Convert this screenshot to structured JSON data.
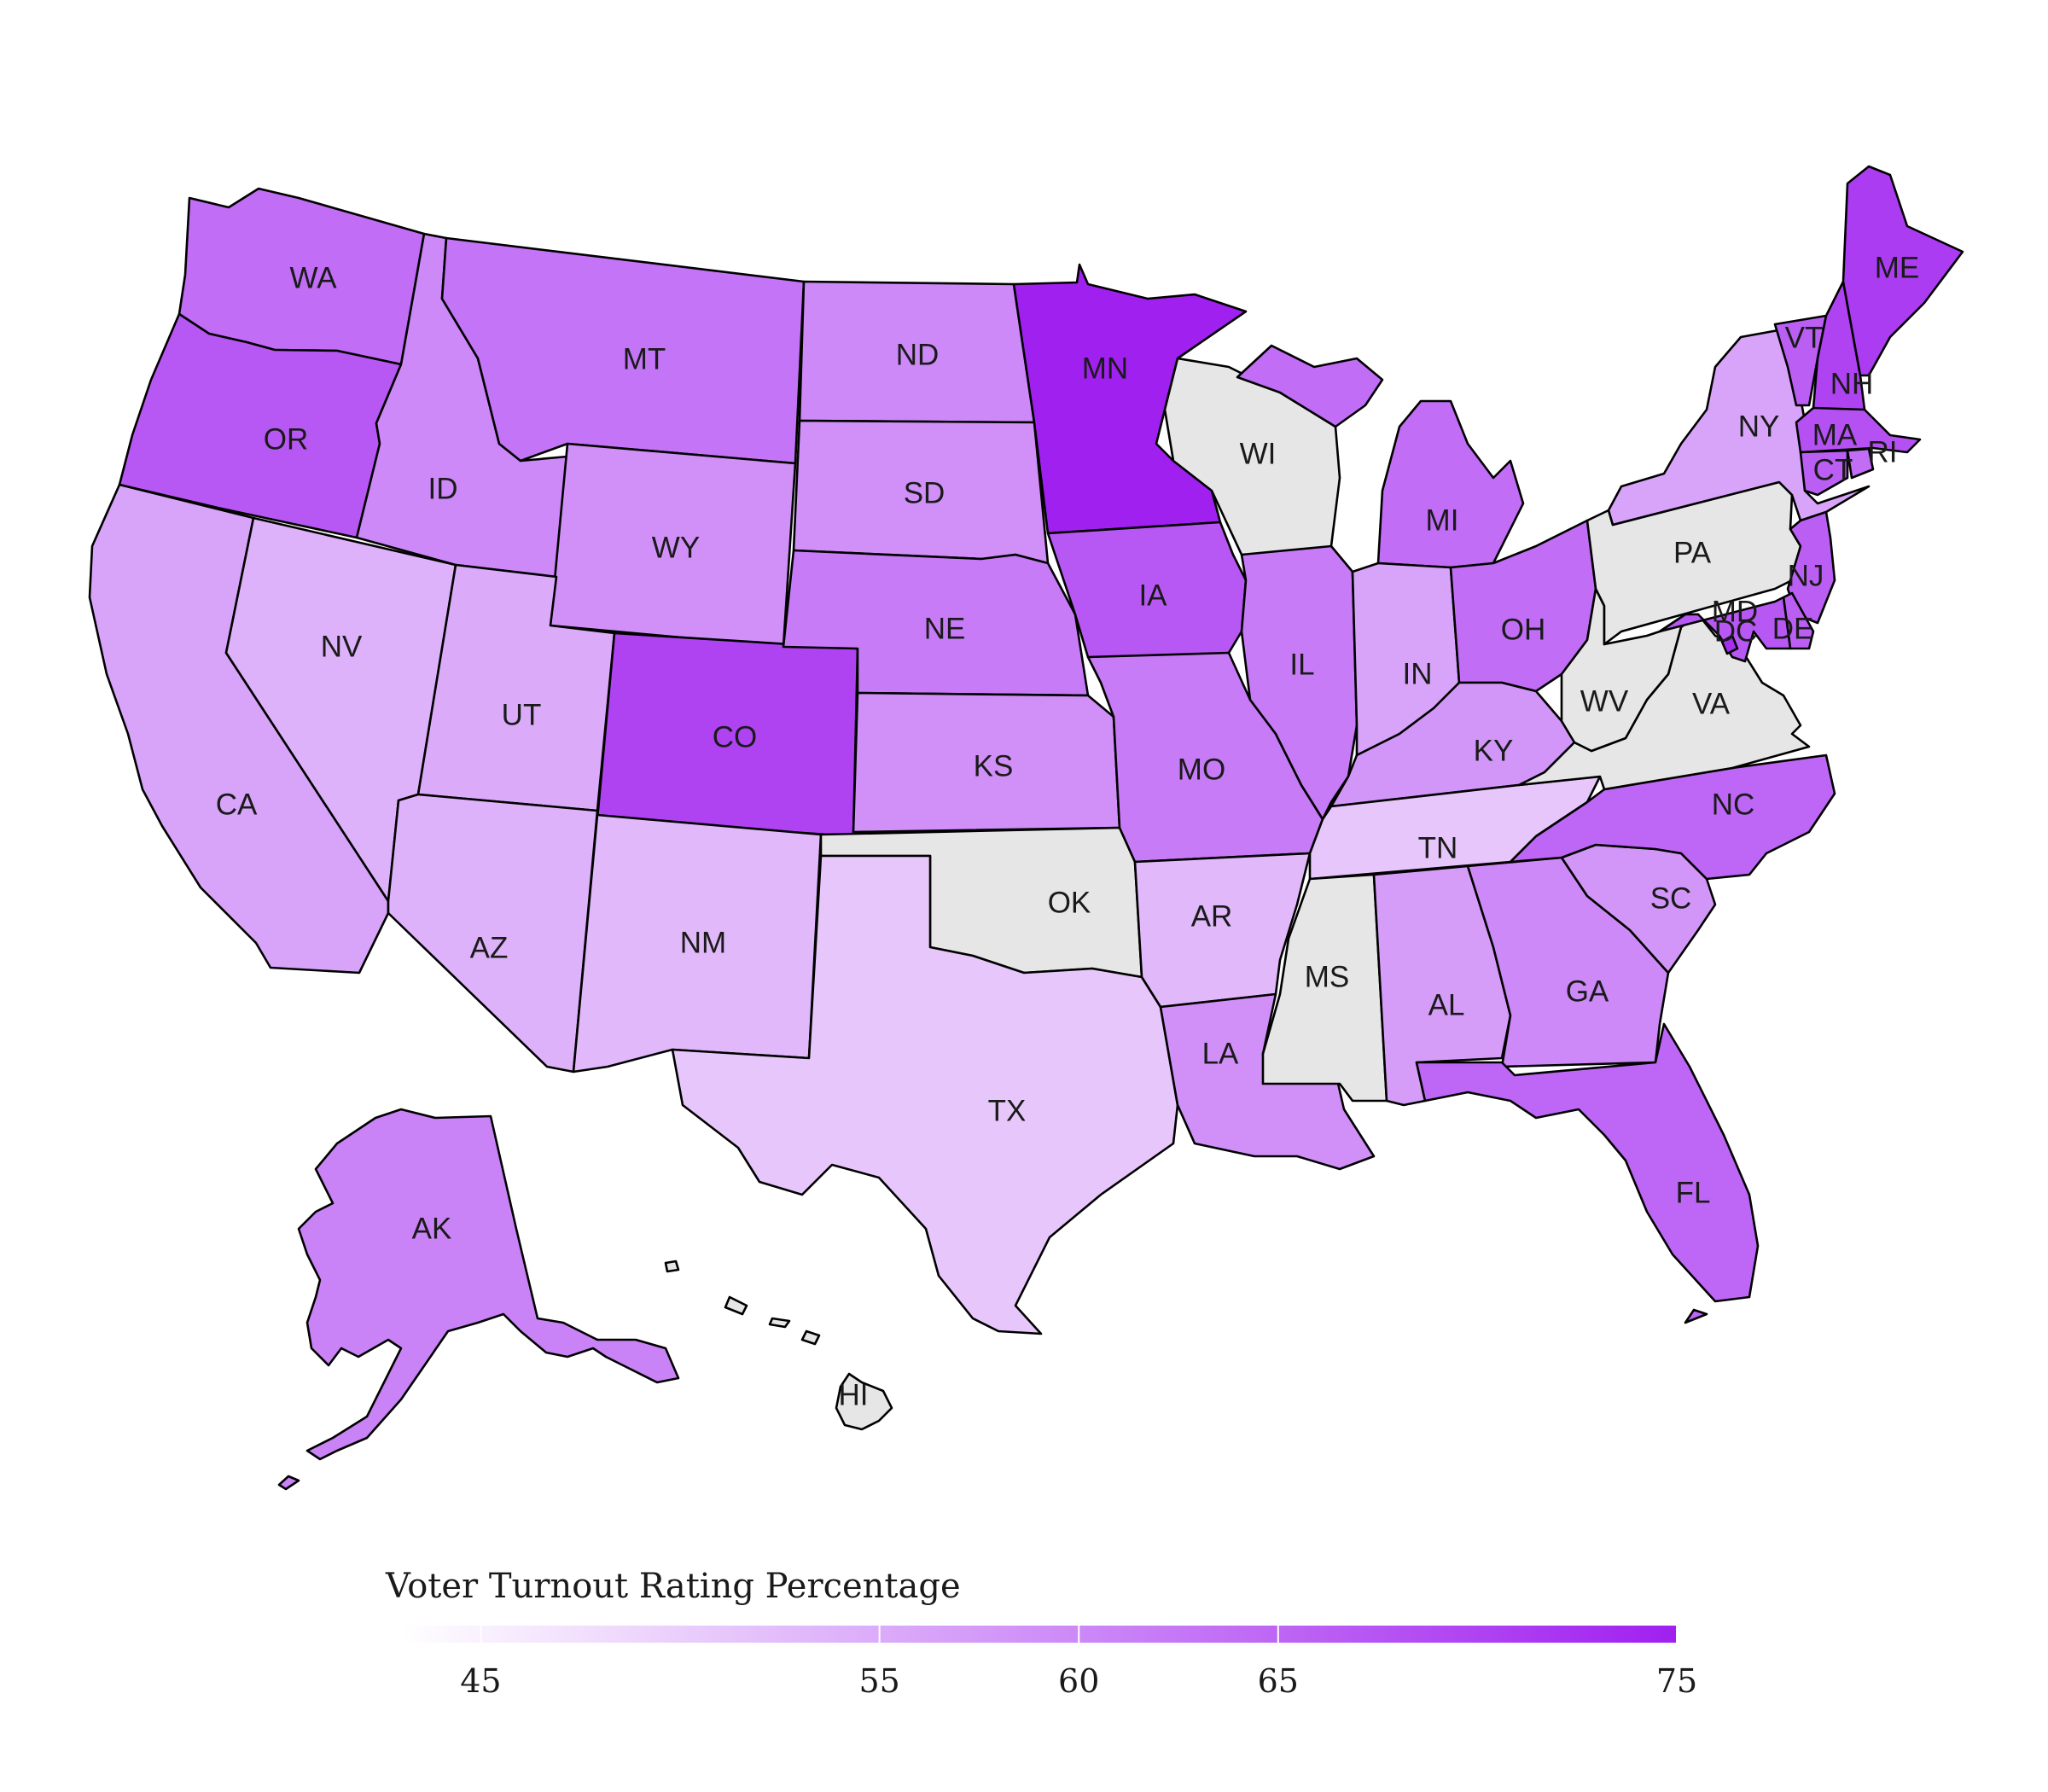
{
  "legend": {
    "title": "Voter Turnout Rating Percentage",
    "min": 43,
    "max": 75,
    "ticks": [
      45,
      55,
      60,
      65,
      75
    ],
    "color_low": "#ffffff",
    "color_high": "#a020f0",
    "missing_color": "#e6e6e6"
  },
  "chart_data": {
    "type": "choropleth",
    "value_name": "Voter Turnout Rating Percentage",
    "scale": [
      43,
      75
    ],
    "states": [
      {
        "abbr": "WA",
        "value": 64
      },
      {
        "abbr": "OR",
        "value": 67
      },
      {
        "abbr": "CA",
        "value": 56
      },
      {
        "abbr": "NV",
        "value": 54
      },
      {
        "abbr": "ID",
        "value": 60
      },
      {
        "abbr": "MT",
        "value": 63
      },
      {
        "abbr": "WY",
        "value": 59
      },
      {
        "abbr": "UT",
        "value": 55
      },
      {
        "abbr": "AZ",
        "value": 54
      },
      {
        "abbr": "CO",
        "value": 70
      },
      {
        "abbr": "NM",
        "value": 53
      },
      {
        "abbr": "ND",
        "value": 60
      },
      {
        "abbr": "SD",
        "value": 59
      },
      {
        "abbr": "NE",
        "value": 62
      },
      {
        "abbr": "KS",
        "value": 59
      },
      {
        "abbr": "OK",
        "value": null
      },
      {
        "abbr": "TX",
        "value": 51
      },
      {
        "abbr": "MN",
        "value": 75
      },
      {
        "abbr": "IA",
        "value": 67
      },
      {
        "abbr": "MO",
        "value": 62
      },
      {
        "abbr": "AR",
        "value": 53
      },
      {
        "abbr": "LA",
        "value": 59
      },
      {
        "abbr": "WI",
        "value": null
      },
      {
        "abbr": "IL",
        "value": 62
      },
      {
        "abbr": "MI",
        "value": 64
      },
      {
        "abbr": "IN",
        "value": 56
      },
      {
        "abbr": "OH",
        "value": 64
      },
      {
        "abbr": "KY",
        "value": 58
      },
      {
        "abbr": "TN",
        "value": 51
      },
      {
        "abbr": "MS",
        "value": null
      },
      {
        "abbr": "AL",
        "value": 57
      },
      {
        "abbr": "GA",
        "value": 60
      },
      {
        "abbr": "FL",
        "value": 65
      },
      {
        "abbr": "SC",
        "value": 58
      },
      {
        "abbr": "NC",
        "value": 65
      },
      {
        "abbr": "VA",
        "value": null
      },
      {
        "abbr": "WV",
        "value": null
      },
      {
        "abbr": "PA",
        "value": null
      },
      {
        "abbr": "NY",
        "value": 56
      },
      {
        "abbr": "VT",
        "value": 66
      },
      {
        "abbr": "NH",
        "value": 70
      },
      {
        "abbr": "ME",
        "value": 71
      },
      {
        "abbr": "MA",
        "value": 68
      },
      {
        "abbr": "RI",
        "value": 64
      },
      {
        "abbr": "CT",
        "value": 66
      },
      {
        "abbr": "NJ",
        "value": 66
      },
      {
        "abbr": "DE",
        "value": 66
      },
      {
        "abbr": "MD",
        "value": 67
      },
      {
        "abbr": "DC",
        "value": 73
      },
      {
        "abbr": "AK",
        "value": 61
      },
      {
        "abbr": "HI",
        "value": null
      }
    ]
  }
}
